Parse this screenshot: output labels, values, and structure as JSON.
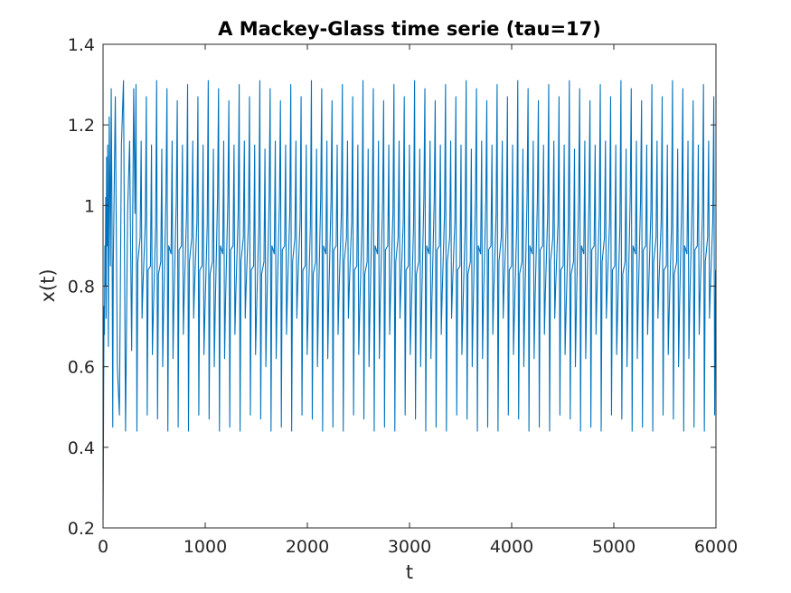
{
  "chart_data": {
    "type": "line",
    "title": "A Mackey-Glass time serie (tau=17)",
    "xlabel": "t",
    "ylabel": "x(t)",
    "xlim": [
      0,
      6000
    ],
    "ylim": [
      0.2,
      1.4
    ],
    "xticks": [
      "0",
      "1000",
      "2000",
      "3000",
      "4000",
      "5000",
      "6000"
    ],
    "yticks": [
      "0.2",
      "0.4",
      "0.6",
      "0.8",
      "1",
      "1.2",
      "1.4"
    ],
    "grid": false,
    "legend": "none",
    "series_color": "#0072bd",
    "series": [
      {
        "x": [
          0,
          3,
          6,
          10,
          14,
          18,
          22,
          26,
          30,
          35,
          40,
          45,
          52,
          60,
          65,
          72,
          80,
          88,
          95,
          100,
          120,
          140,
          160,
          180,
          200,
          220,
          240,
          260,
          280,
          300
        ],
        "y": [
          0.22,
          0.35,
          0.55,
          0.75,
          0.68,
          0.9,
          0.8,
          1.02,
          0.72,
          1.12,
          0.9,
          1.15,
          0.65,
          1.22,
          1.1,
          0.85,
          1.29,
          0.95,
          0.45,
          0.85,
          1.27,
          0.6,
          0.48,
          1.15,
          1.31,
          0.44,
          0.98,
          1.16,
          0.64,
          1.29
        ]
      }
    ]
  }
}
